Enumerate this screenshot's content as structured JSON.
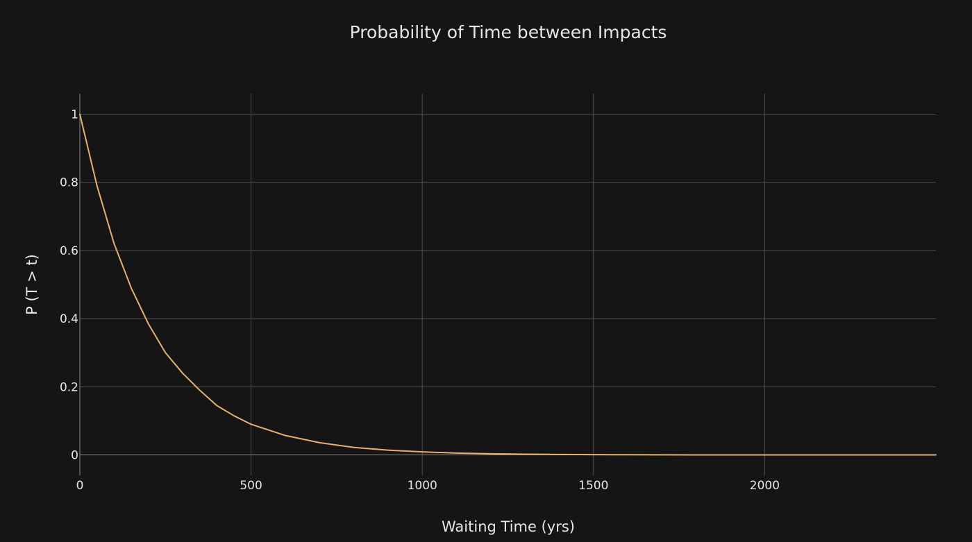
{
  "colors": {
    "background": "#151515",
    "grid": "#4f4f4f",
    "text": "#e6e6e6",
    "series": "#e8b06e"
  },
  "chart_data": {
    "type": "line",
    "title": "Probability of Time between Impacts",
    "xlabel": "Waiting Time (yrs)",
    "ylabel": "P (T > t)",
    "xlim": [
      0,
      2500
    ],
    "ylim": [
      -0.06,
      1.06
    ],
    "grid": true,
    "legend": "none",
    "x_ticks": [
      0,
      500,
      1000,
      1500,
      2000
    ],
    "x_tick_labels": [
      "0",
      "500",
      "1000",
      "1500",
      "2000"
    ],
    "y_ticks": [
      0,
      0.2,
      0.4,
      0.6,
      0.8,
      1
    ],
    "y_tick_labels": [
      "0",
      "0.2",
      "0.4",
      "0.6",
      "0.8",
      "1"
    ],
    "series": [
      {
        "x": [
          0,
          50,
          100,
          150,
          200,
          250,
          300,
          350,
          400,
          450,
          500,
          600,
          700,
          800,
          900,
          1000,
          1100,
          1200,
          1300,
          1400,
          1500,
          1600,
          1700,
          1800,
          1900,
          2000,
          2100,
          2200,
          2300,
          2400,
          2500
        ],
        "y": [
          1.0,
          0.79,
          0.62,
          0.49,
          0.385,
          0.3,
          0.24,
          0.19,
          0.145,
          0.115,
          0.09,
          0.057,
          0.036,
          0.022,
          0.014,
          0.009,
          0.0055,
          0.0035,
          0.0022,
          0.0014,
          0.0009,
          0.0005,
          0.0003,
          0.0002,
          0.0001,
          0.0001,
          0.0,
          0.0,
          0.0,
          0.0,
          0.0
        ],
        "color": "#e8b06e"
      }
    ]
  }
}
